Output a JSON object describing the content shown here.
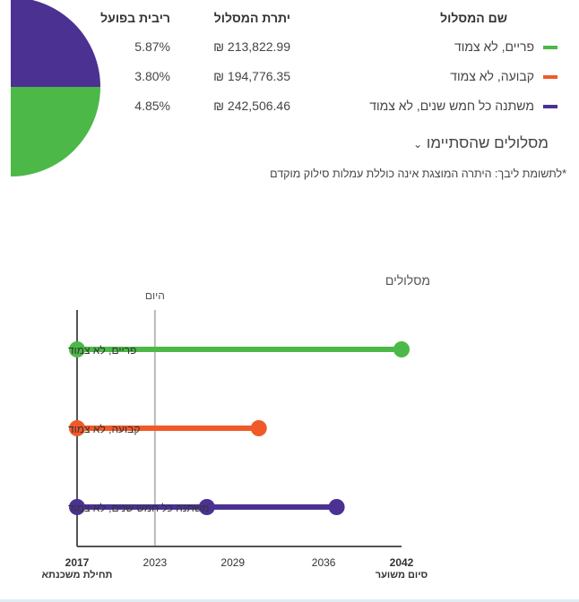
{
  "colors": {
    "green": "#4cb848",
    "orange": "#f05a28",
    "purple": "#4b3192",
    "axis": "#555555",
    "today": "#bbbbbb"
  },
  "table": {
    "headers": {
      "name": "שם המסלול",
      "balance": "יתרת המסלול",
      "rate": "ריבית בפועל"
    },
    "rows": [
      {
        "name": "פריים, לא צמוד",
        "balance": "213,822.99 ₪",
        "rate": "5.87%",
        "color": "#4cb848"
      },
      {
        "name": "קבועה, לא צמוד",
        "balance": "194,776.35 ₪",
        "rate": "3.80%",
        "color": "#f05a28"
      },
      {
        "name": "משתנה כל חמש שנים, לא צמוד",
        "balance": "242,506.46 ₪",
        "rate": "4.85%",
        "color": "#4b3192"
      }
    ]
  },
  "finished_tracks_label": "מסלולים שהסתיימו",
  "note": "*לתשומת ליבך: היתרה המוצגת אינה כוללת עמלות סילוק מוקדם",
  "chart_data": {
    "type": "timeline",
    "title": "מסלולים",
    "today_label": "היום",
    "today_year": 2023,
    "xlim": [
      2017,
      2042
    ],
    "ticks": [
      {
        "year": 2017,
        "label": "2017",
        "sub": "תחילת משכנתא",
        "bold": true
      },
      {
        "year": 2023,
        "label": "2023",
        "sub": "",
        "bold": false
      },
      {
        "year": 2029,
        "label": "2029",
        "sub": "",
        "bold": false
      },
      {
        "year": 2036,
        "label": "2036",
        "sub": "",
        "bold": false
      },
      {
        "year": 2042,
        "label": "2042",
        "sub": "סיום משוער",
        "bold": true
      }
    ],
    "series": [
      {
        "name": "פריים, לא צמוד",
        "color": "#4cb848",
        "points": [
          2017,
          2042
        ]
      },
      {
        "name": "קבועה, לא צמוד",
        "color": "#f05a28",
        "points": [
          2017,
          2031
        ]
      },
      {
        "name": "משתנה כל חמש שנים, לא צמוד",
        "color": "#4b3192",
        "points": [
          2017,
          2027,
          2037
        ]
      }
    ]
  }
}
